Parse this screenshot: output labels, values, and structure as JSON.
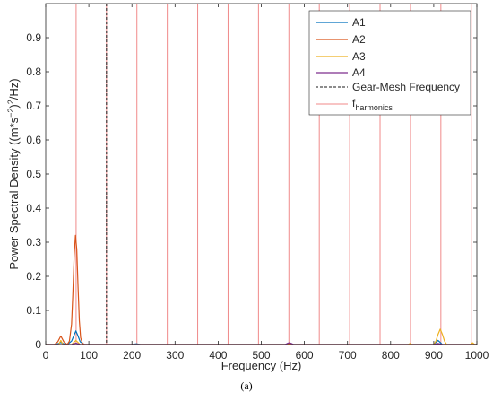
{
  "caption": "(a)",
  "chart_data": {
    "type": "line",
    "xlabel": "Frequency (Hz)",
    "ylabel_parts": [
      "Power Spectral Density ((m*s",
      "−2",
      ")",
      "2",
      "/Hz)"
    ],
    "xlim": [
      0,
      1000
    ],
    "ylim": [
      0,
      1
    ],
    "xticks": [
      0,
      100,
      200,
      300,
      400,
      500,
      600,
      700,
      800,
      900,
      1000
    ],
    "yticks": [
      0,
      0.1,
      0.2,
      0.3,
      0.4,
      0.5,
      0.6,
      0.7,
      0.8,
      0.9
    ],
    "ytick_labels": [
      "0",
      "0.1",
      "0.2",
      "0.3",
      "0.4",
      "0.5",
      "0.6",
      "0.7",
      "0.8",
      "0.9"
    ],
    "grid": false,
    "legend_position": "top-right",
    "series": [
      {
        "name": "A1",
        "color": "#0072BD",
        "x": [
          0,
          20,
          30,
          35,
          40,
          50,
          60,
          65,
          70,
          75,
          80,
          90,
          100,
          140,
          200,
          210,
          220,
          300,
          420,
          560,
          565,
          570,
          900,
          905,
          910,
          915,
          920,
          930,
          1000
        ],
        "y": [
          0,
          0,
          0.003,
          0.006,
          0.003,
          0,
          0.01,
          0.025,
          0.04,
          0.025,
          0.008,
          0,
          0,
          0,
          0,
          0.002,
          0,
          0,
          0,
          0,
          0.002,
          0,
          0,
          0.006,
          0.012,
          0.006,
          0,
          0,
          0
        ]
      },
      {
        "name": "A2",
        "color": "#D95319",
        "x": [
          0,
          20,
          28,
          35,
          42,
          50,
          55,
          60,
          63,
          66,
          69,
          72,
          75,
          78,
          81,
          85,
          90,
          100,
          140,
          300,
          560,
          565,
          570,
          1000
        ],
        "y": [
          0,
          0,
          0.008,
          0.025,
          0.008,
          0,
          0.01,
          0.06,
          0.15,
          0.26,
          0.32,
          0.28,
          0.17,
          0.07,
          0.02,
          0.004,
          0,
          0,
          0,
          0,
          0,
          0.003,
          0,
          0
        ]
      },
      {
        "name": "A3",
        "color": "#EDB120",
        "x": [
          0,
          30,
          35,
          40,
          60,
          70,
          80,
          300,
          840,
          845,
          850,
          900,
          905,
          910,
          915,
          920,
          925,
          930,
          985,
          990,
          995,
          1000
        ],
        "y": [
          0,
          0,
          0.012,
          0,
          0,
          0.012,
          0,
          0,
          0,
          0.003,
          0,
          0,
          0.01,
          0.03,
          0.045,
          0.03,
          0.01,
          0,
          0,
          0.005,
          0,
          0
        ]
      },
      {
        "name": "A4",
        "color": "#7E2F8E",
        "x": [
          0,
          60,
          70,
          80,
          140,
          280,
          420,
          555,
          560,
          565,
          570,
          575,
          900,
          910,
          920,
          1000
        ],
        "y": [
          0,
          0,
          0.004,
          0,
          0,
          0,
          0,
          0,
          0.003,
          0.005,
          0.003,
          0,
          0,
          0.003,
          0,
          0
        ]
      }
    ],
    "gear_mesh": {
      "name": "Gear-Mesh Frequency",
      "x": 141,
      "color": "#1a1a1a"
    },
    "harmonics": {
      "name_main": "f",
      "name_sub": "harmonics",
      "color": "#F08A8A",
      "x": [
        70.5,
        141,
        211.5,
        282,
        352.5,
        423,
        493.5,
        564,
        634.5,
        705,
        775.5,
        846,
        916.5,
        987
      ]
    }
  }
}
